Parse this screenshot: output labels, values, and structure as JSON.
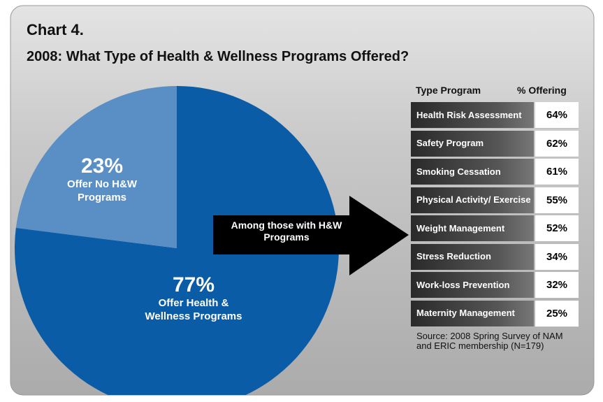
{
  "chart_data": {
    "type": "pie",
    "title": "Chart 4.",
    "subtitle": "2008: What Type of Health & Wellness Programs Offered?",
    "categories": [
      "Offer Health & Wellness Programs",
      "Offer No H&W Programs"
    ],
    "values": [
      77,
      23
    ],
    "value_labels": [
      "77%",
      "23%"
    ],
    "colors": [
      "#0b5ca6",
      "#5a8fc6"
    ],
    "annotation": "Among those with H&W Programs"
  },
  "table": {
    "header": [
      "Type Program",
      "% Offering"
    ],
    "rows": [
      [
        "Health Risk Assessment",
        "64%"
      ],
      [
        "Safety Program",
        "62%"
      ],
      [
        "Smoking Cessation",
        "61%"
      ],
      [
        "Physical Activity/ Exercise",
        "55%"
      ],
      [
        "Weight Management",
        "52%"
      ],
      [
        "Stress Reduction",
        "34%"
      ],
      [
        "Work-loss Prevention",
        "32%"
      ],
      [
        "Maternity Management",
        "25%"
      ]
    ],
    "source": "Source: 2008 Spring Survey of NAM and ERIC membership (N=179)"
  }
}
